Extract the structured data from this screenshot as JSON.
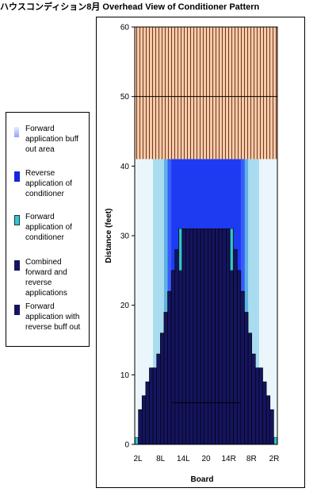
{
  "title": "ハウスコンディション8月 Overhead View of Conditioner Pattern",
  "colors": {
    "hatch_bg": "#f7c9a8",
    "hatch_line": "#6e3a20",
    "buff_forward_light": "#eaf6fb",
    "buff_forward_mid": "#a9dcef",
    "buff_forward_dark": "#5fb3e4",
    "reverse": "#1e3bf2",
    "reverse_top": "#3a5bff",
    "forward": "#36c6cf",
    "combined": "#14145f",
    "combined_line": "#000000"
  },
  "legend": [
    {
      "label": "Forward application buff out area",
      "swatch": "forward-buff",
      "color": "#b8c8ff"
    },
    {
      "label": "Reverse application of conditioner",
      "swatch": "reverse",
      "color": "#1a24e0"
    },
    {
      "label": "Forward application of conditioner",
      "swatch": "forward",
      "color": "#36c6cf"
    },
    {
      "label": "Combined forward and reverse applications",
      "swatch": "combined",
      "color": "#14145f"
    },
    {
      "label": "Forward application with reverse buff out",
      "swatch": "forward-reverse-buff",
      "color": "#14145f"
    }
  ],
  "chart_data": {
    "type": "area",
    "title": "ハウスコンディション8月 Overhead View of Conditioner Pattern",
    "xlabel": "Board",
    "ylabel": "Distance (feet)",
    "ylim": [
      0,
      60
    ],
    "yticks": [
      0,
      10,
      20,
      30,
      40,
      50,
      60
    ],
    "x_tick_labels": [
      "2L",
      "8L",
      "14L",
      "20",
      "14R",
      "8R",
      "2R"
    ],
    "boards": [
      "1L",
      "2L",
      "3L",
      "4L",
      "5L",
      "6L",
      "7L",
      "8L",
      "9L",
      "10L",
      "11L",
      "12L",
      "13L",
      "14L",
      "15L",
      "16L",
      "17L",
      "18L",
      "19L",
      "20",
      "19R",
      "18R",
      "17R",
      "16R",
      "15R",
      "14R",
      "13R",
      "12R",
      "11R",
      "10R",
      "9R",
      "8R",
      "7R",
      "6R",
      "5R",
      "4R",
      "3R",
      "2R",
      "1R"
    ],
    "oil_length_feet": 41,
    "lane_length_feet": 60,
    "combined_heights_feet": [
      1,
      5,
      7,
      9,
      11,
      11,
      13,
      16,
      19,
      22,
      25,
      28,
      31,
      31,
      31,
      31,
      31,
      31,
      31,
      31,
      31,
      31,
      31,
      31,
      31,
      31,
      31,
      28,
      25,
      22,
      19,
      16,
      13,
      11,
      11,
      9,
      7,
      5,
      1
    ],
    "forward_buff_heights_feet": [
      41,
      41,
      41,
      41,
      41,
      41,
      41,
      41,
      41,
      41,
      41,
      41,
      41,
      41,
      41,
      41,
      41,
      41,
      41,
      41,
      41,
      41,
      41,
      41,
      41,
      41,
      41,
      41,
      41,
      41,
      41,
      41,
      41,
      41,
      41,
      41,
      41,
      41,
      41
    ],
    "reverse_zone_feet": {
      "from_board": "10L",
      "to_board": "10R",
      "top": 41
    },
    "forward_markers": [
      {
        "board": "1L",
        "from": 0,
        "to": 1
      },
      {
        "board": "13L",
        "from": 25,
        "to": 31
      },
      {
        "board": "13R",
        "from": 25,
        "to": 31
      },
      {
        "board": "1R",
        "from": 0,
        "to": 1
      }
    ],
    "reference_lines_feet": [
      50,
      6
    ],
    "grid": "horizontal at 50 only"
  }
}
